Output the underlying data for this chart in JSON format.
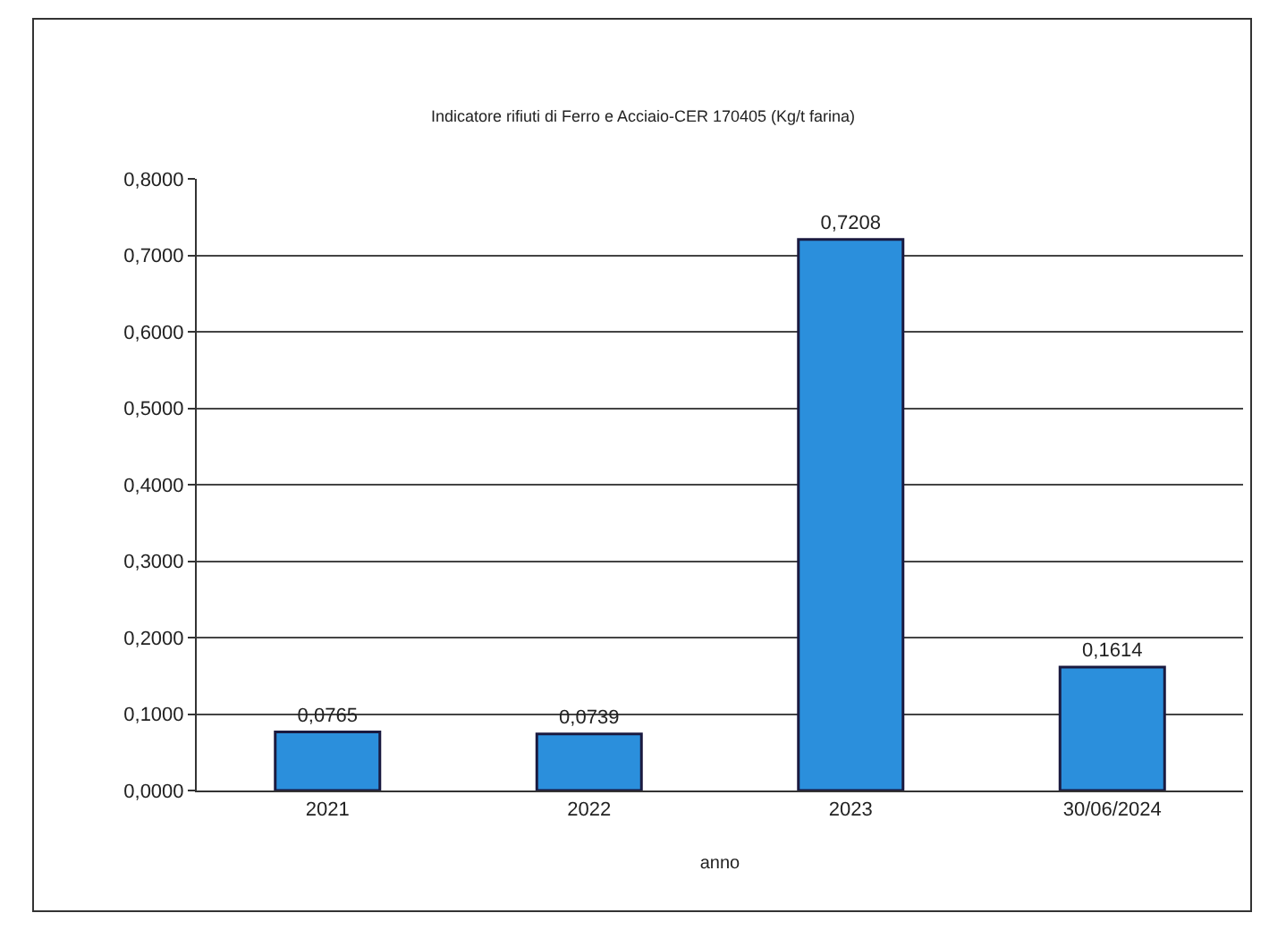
{
  "chart_data": {
    "type": "bar",
    "title": "Indicatore rifiuti di Ferro e Acciaio-CER 170405 (Kg/t farina)",
    "xlabel": "anno",
    "categories": [
      "2021",
      "2022",
      "2023",
      "30/06/2024"
    ],
    "values": [
      0.0765,
      0.0739,
      0.7208,
      0.1614
    ],
    "value_labels": [
      "0,0765",
      "0,0739",
      "0,7208",
      "0,1614"
    ],
    "color": "#2b8fdc",
    "ylim": [
      0,
      0.8
    ],
    "yticks": [
      {
        "value": 0,
        "label": "0,0000"
      },
      {
        "value": 0.1,
        "label": "0,1000"
      },
      {
        "value": 0.2,
        "label": "0,2000"
      },
      {
        "value": 0.3,
        "label": "0,3000"
      },
      {
        "value": 0.4,
        "label": "0,4000"
      },
      {
        "value": 0.5,
        "label": "0,5000"
      },
      {
        "value": 0.6,
        "label": "0,6000"
      },
      {
        "value": 0.7,
        "label": "0,7000"
      },
      {
        "value": 0.8,
        "label": "0,8000"
      }
    ],
    "grid": "y",
    "legend": false
  }
}
